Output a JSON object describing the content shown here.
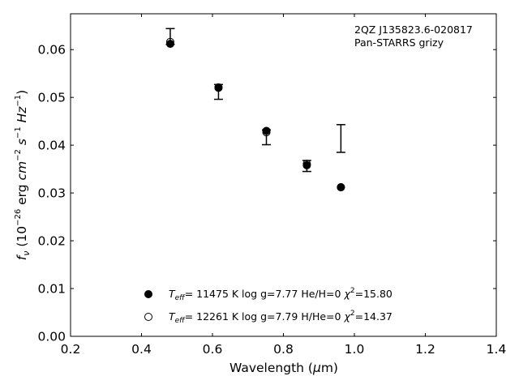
{
  "chart_data": {
    "type": "scatter",
    "annotation": [
      "2QZ J135823.6-020817",
      "Pan-STARRS grizy"
    ],
    "xlim": [
      0.2,
      1.4
    ],
    "ylim": [
      0.0,
      0.0675
    ],
    "x_ticks": [
      0.2,
      0.4,
      0.6,
      0.8,
      1.0,
      1.2,
      1.4
    ],
    "x_tick_labels": [
      "0.2",
      "0.4",
      "0.6",
      "0.8",
      "1.0",
      "1.2",
      "1.4"
    ],
    "y_ticks": [
      0.0,
      0.01,
      0.02,
      0.03,
      0.04,
      0.05,
      0.06
    ],
    "y_tick_labels": [
      "0.00",
      "0.01",
      "0.02",
      "0.03",
      "0.04",
      "0.05",
      "0.06"
    ],
    "grid": false,
    "observed": {
      "x": [
        0.481,
        0.617,
        0.752,
        0.866,
        0.962
      ],
      "y_low": [
        0.0611,
        0.0496,
        0.0401,
        0.0345,
        0.0385
      ],
      "y_high": [
        0.0644,
        0.0527,
        0.0432,
        0.0368,
        0.0443
      ]
    },
    "series": [
      {
        "marker": "filled-circle",
        "x": [
          0.481,
          0.617,
          0.752,
          0.866,
          0.962
        ],
        "y": [
          0.0612,
          0.0521,
          0.043,
          0.0358,
          0.0312
        ]
      },
      {
        "marker": "open-circle",
        "x": [
          0.481,
          0.617,
          0.752,
          0.866,
          0.962
        ],
        "y": [
          0.0616,
          0.052,
          0.0427,
          0.0361,
          0.0312
        ]
      }
    ],
    "legend": {
      "placement": "bottom-center",
      "entries": [
        {
          "teff": "11475",
          "logg": "7.77",
          "comp_label": "He/H=0",
          "chi2": "15.80"
        },
        {
          "teff": "12261",
          "logg": "7.79",
          "comp_label": "H/He=0",
          "chi2": "14.37"
        }
      ]
    }
  }
}
